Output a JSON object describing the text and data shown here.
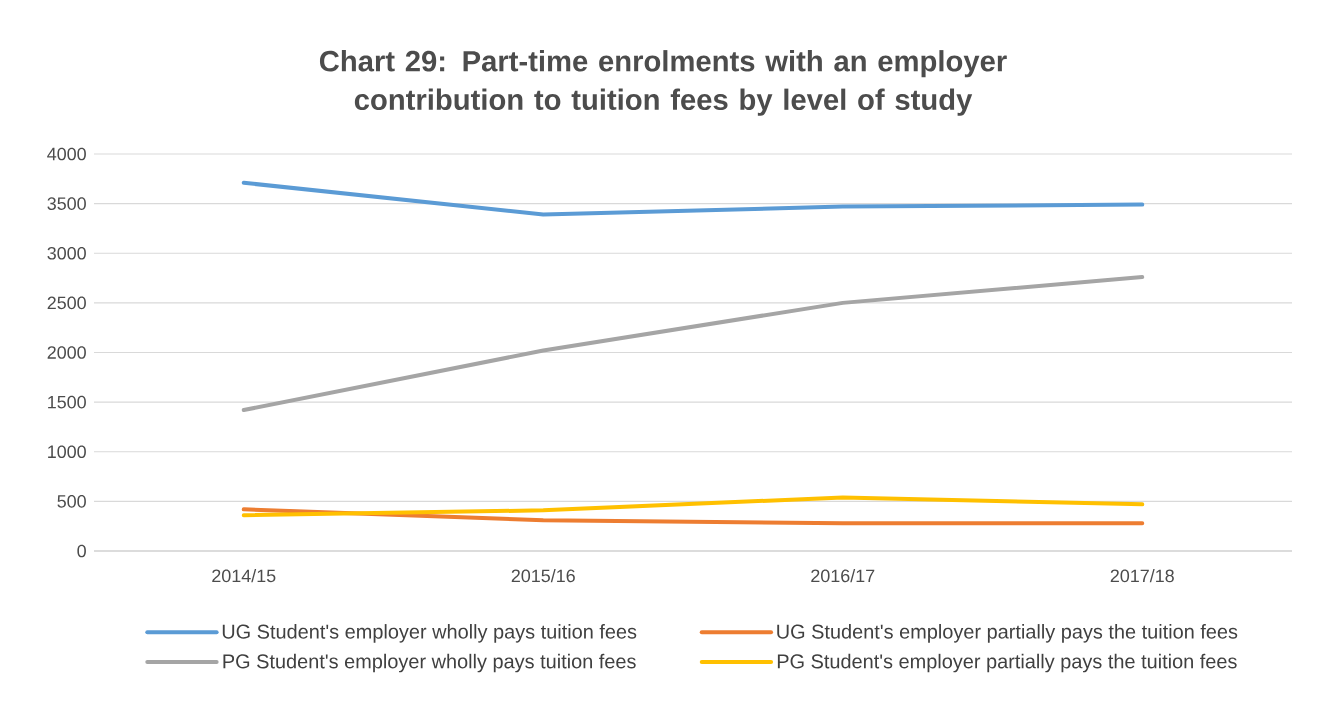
{
  "chart_data": {
    "type": "line",
    "title": "Chart 29: Part-time enrolments with an employer contribution to tuition fees by level of study",
    "categories": [
      "2014/15",
      "2015/16",
      "2016/17",
      "2017/18"
    ],
    "series": [
      {
        "name": "UG Student's employer wholly pays tuition fees",
        "color": "#5b9bd5",
        "values": [
          3710,
          3390,
          3470,
          3490
        ]
      },
      {
        "name": "UG Student's employer partially pays the tuition fees",
        "color": "#ed7d31",
        "values": [
          420,
          310,
          280,
          280
        ]
      },
      {
        "name": "PG Student's employer wholly pays tuition fees",
        "color": "#a5a5a5",
        "values": [
          1420,
          2020,
          2500,
          2760
        ]
      },
      {
        "name": "PG Student's employer partially pays the tuition fees",
        "color": "#ffc000",
        "values": [
          360,
          410,
          540,
          470
        ]
      }
    ],
    "ylim": [
      0,
      4000
    ],
    "yticks": [
      0,
      500,
      1000,
      1500,
      2000,
      2500,
      3000,
      3500,
      4000
    ],
    "grid": "y",
    "legend": "bottom",
    "marker": "none",
    "line_style": "solid"
  }
}
